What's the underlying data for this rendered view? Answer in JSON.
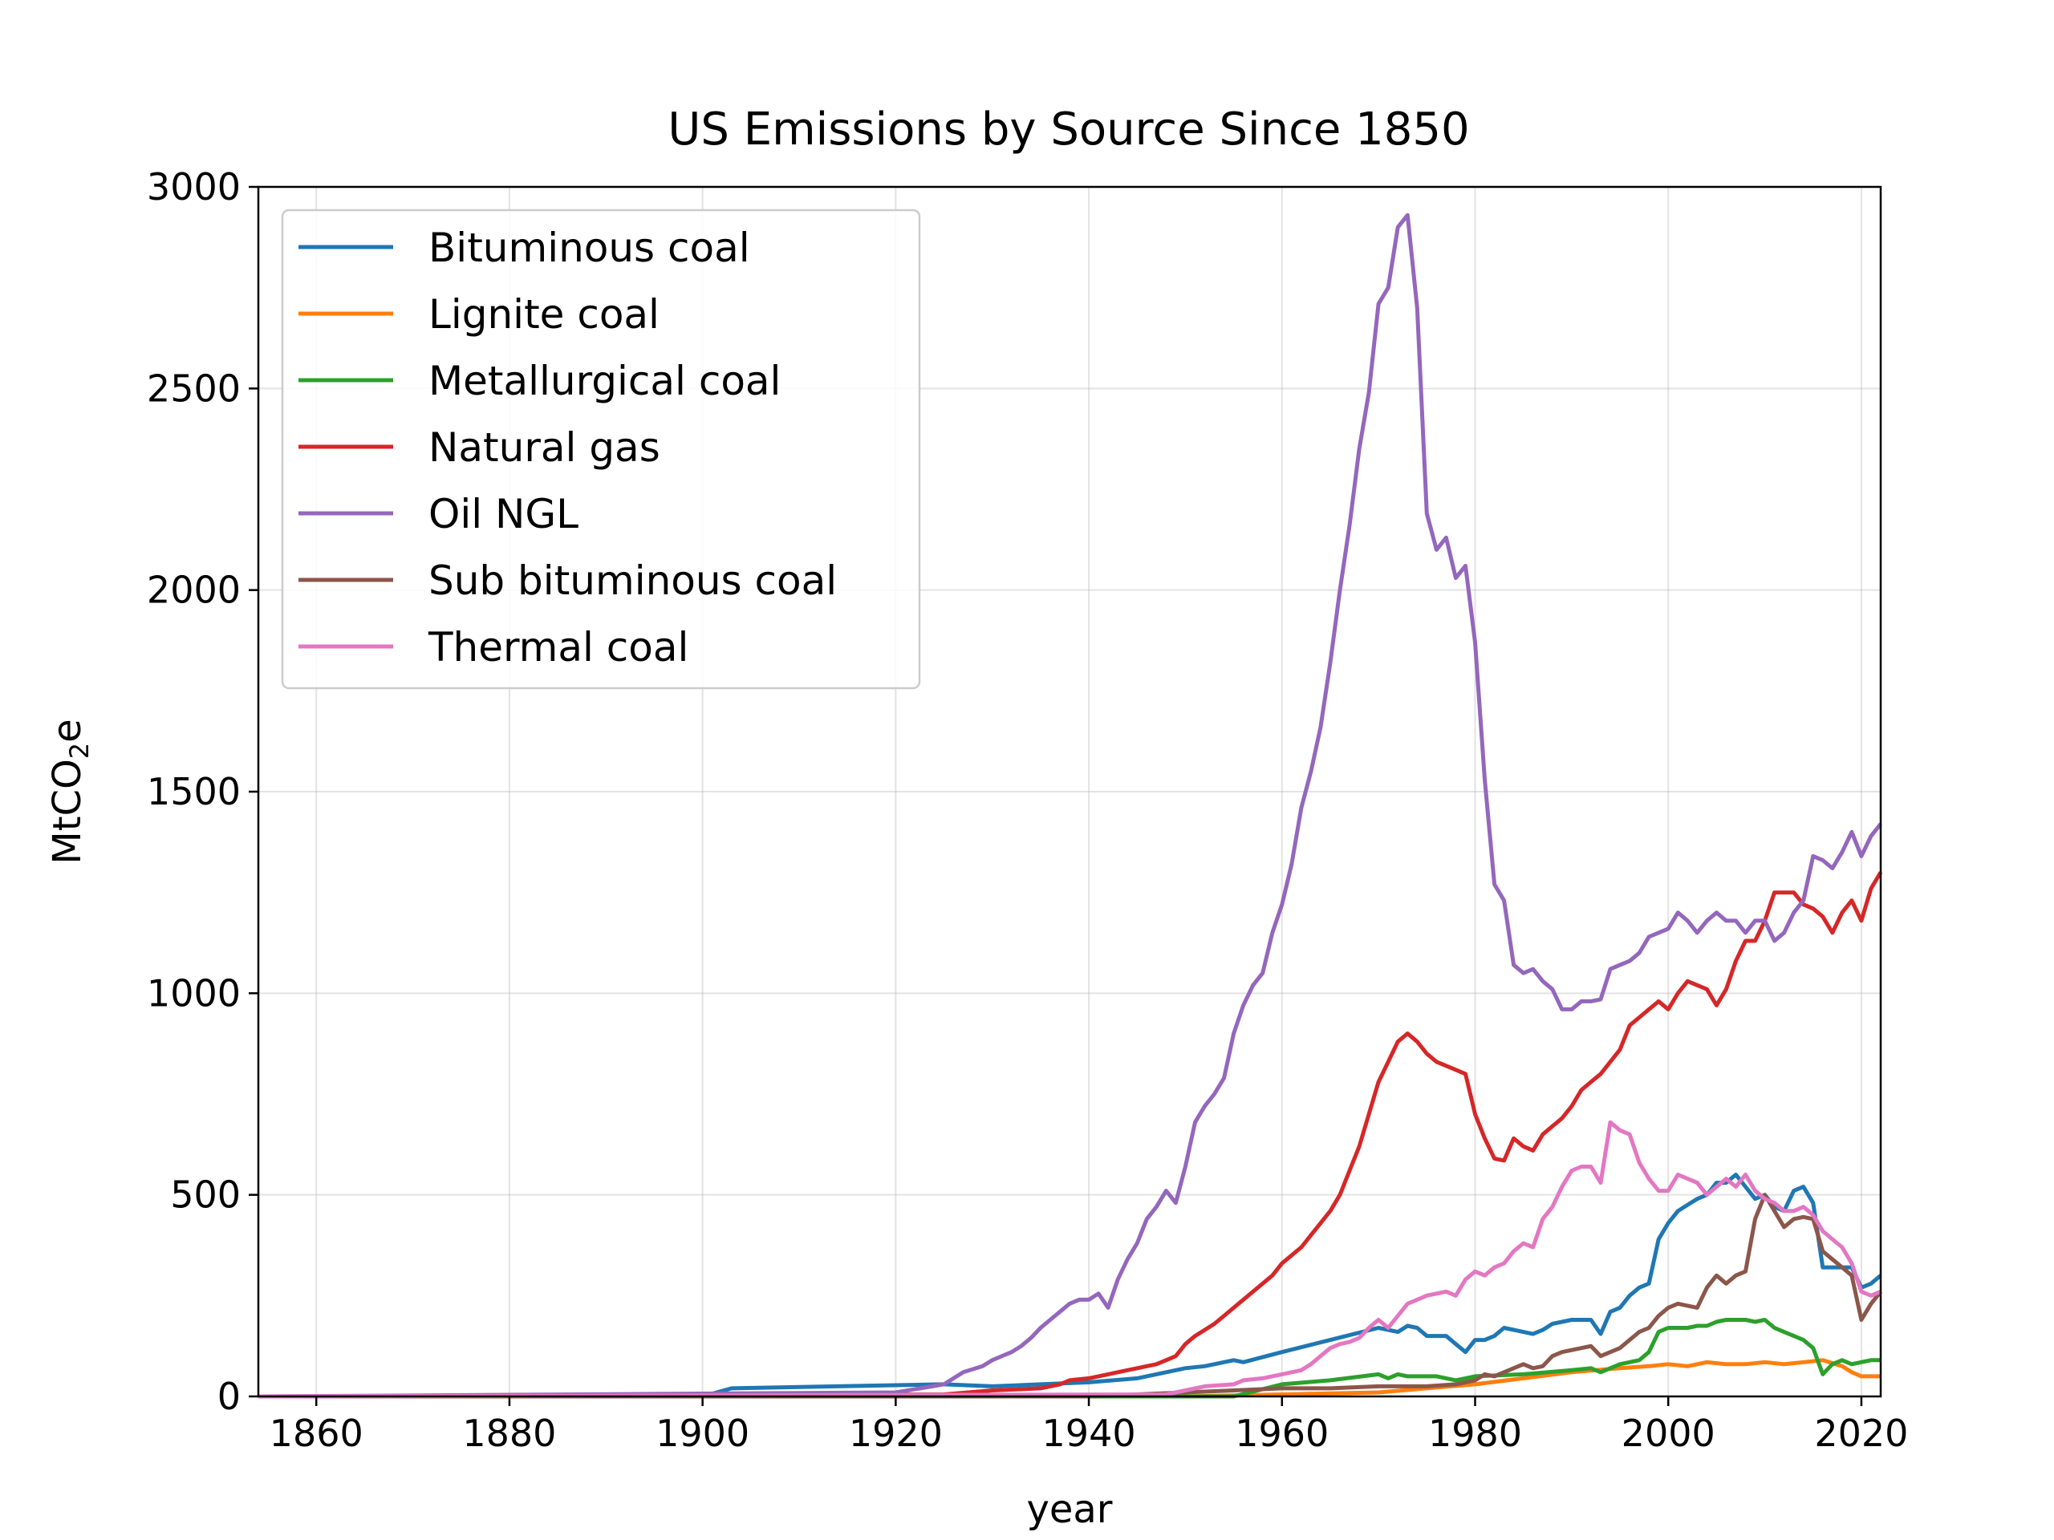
{
  "chart_data": {
    "type": "line",
    "title": "US Emissions by Source Since 1850",
    "xlabel": "year",
    "ylabel_main": "MtCO",
    "ylabel_sub": "2",
    "ylabel_end": "e",
    "xlim": [
      1854,
      2022
    ],
    "ylim": [
      0,
      3000
    ],
    "x_ticks": [
      1860,
      1880,
      1900,
      1920,
      1940,
      1960,
      1980,
      2000,
      2020
    ],
    "y_ticks": [
      0,
      500,
      1000,
      1500,
      2000,
      2500,
      3000
    ],
    "grid": true,
    "legend_position": "top-left",
    "series": [
      {
        "name": "Bituminous coal",
        "color": "#1f77b4",
        "x": [
          1854,
          1900,
          1903,
          1925,
          1930,
          1935,
          1940,
          1945,
          1950,
          1952,
          1955,
          1956,
          1960,
          1965,
          1970,
          1972,
          1973,
          1974,
          1975,
          1976,
          1977,
          1978,
          1979,
          1980,
          1981,
          1982,
          1983,
          1985,
          1986,
          1987,
          1988,
          1990,
          1992,
          1993,
          1994,
          1995,
          1996,
          1997,
          1998,
          1999,
          2000,
          2001,
          2002,
          2003,
          2004,
          2005,
          2006,
          2007,
          2008,
          2009,
          2010,
          2011,
          2012,
          2013,
          2014,
          2015,
          2016,
          2017,
          2018,
          2019,
          2020,
          2021,
          2022
        ],
        "y": [
          0,
          0,
          20,
          30,
          25,
          30,
          35,
          45,
          70,
          75,
          90,
          85,
          110,
          140,
          170,
          160,
          175,
          170,
          150,
          150,
          150,
          130,
          110,
          140,
          140,
          150,
          170,
          160,
          155,
          165,
          180,
          190,
          190,
          155,
          210,
          220,
          250,
          270,
          280,
          390,
          430,
          460,
          475,
          490,
          500,
          530,
          530,
          550,
          520,
          490,
          500,
          470,
          460,
          510,
          520,
          480,
          320,
          320,
          320,
          320,
          270,
          280,
          300
        ]
      },
      {
        "name": "Lignite coal",
        "color": "#ff7f0e",
        "x": [
          1854,
          1950,
          1960,
          1970,
          1975,
          1980,
          1985,
          1990,
          1995,
          1998,
          2000,
          2002,
          2004,
          2006,
          2008,
          2010,
          2012,
          2014,
          2016,
          2018,
          2019,
          2020,
          2022
        ],
        "y": [
          0,
          0,
          5,
          10,
          20,
          30,
          45,
          60,
          70,
          75,
          80,
          75,
          85,
          80,
          80,
          85,
          80,
          85,
          90,
          75,
          60,
          50,
          50
        ]
      },
      {
        "name": "Metallurgical coal",
        "color": "#2ca02c",
        "x": [
          1854,
          1955,
          1960,
          1965,
          1970,
          1971,
          1972,
          1973,
          1974,
          1975,
          1976,
          1977,
          1978,
          1979,
          1980,
          1985,
          1990,
          1992,
          1993,
          1994,
          1995,
          1996,
          1997,
          1998,
          1999,
          2000,
          2001,
          2002,
          2003,
          2004,
          2005,
          2006,
          2007,
          2008,
          2009,
          2010,
          2011,
          2012,
          2013,
          2014,
          2015,
          2016,
          2017,
          2018,
          2019,
          2020,
          2021,
          2022
        ],
        "y": [
          0,
          0,
          30,
          40,
          55,
          45,
          55,
          50,
          50,
          50,
          50,
          45,
          40,
          45,
          50,
          55,
          65,
          70,
          60,
          70,
          80,
          85,
          90,
          110,
          160,
          170,
          170,
          170,
          175,
          175,
          185,
          190,
          190,
          190,
          185,
          190,
          170,
          160,
          150,
          140,
          120,
          55,
          80,
          90,
          80,
          85,
          90,
          90
        ]
      },
      {
        "name": "Natural gas",
        "color": "#d62728",
        "x": [
          1854,
          1925,
          1930,
          1935,
          1937,
          1938,
          1940,
          1941,
          1942,
          1943,
          1944,
          1945,
          1946,
          1947,
          1948,
          1949,
          1950,
          1951,
          1952,
          1953,
          1954,
          1955,
          1956,
          1957,
          1958,
          1959,
          1960,
          1961,
          1962,
          1963,
          1964,
          1965,
          1966,
          1967,
          1968,
          1969,
          1970,
          1971,
          1972,
          1973,
          1974,
          1975,
          1976,
          1977,
          1978,
          1979,
          1980,
          1981,
          1982,
          1983,
          1984,
          1985,
          1986,
          1987,
          1988,
          1989,
          1990,
          1991,
          1992,
          1993,
          1994,
          1995,
          1996,
          1997,
          1998,
          1999,
          2000,
          2001,
          2002,
          2003,
          2004,
          2005,
          2006,
          2007,
          2008,
          2009,
          2010,
          2011,
          2012,
          2013,
          2014,
          2015,
          2016,
          2017,
          2018,
          2019,
          2020,
          2021,
          2022
        ],
        "y": [
          0,
          5,
          15,
          20,
          30,
          40,
          45,
          50,
          55,
          60,
          65,
          70,
          75,
          80,
          90,
          100,
          130,
          150,
          165,
          180,
          200,
          220,
          240,
          260,
          280,
          300,
          330,
          350,
          370,
          400,
          430,
          460,
          500,
          560,
          620,
          700,
          780,
          830,
          880,
          900,
          880,
          850,
          830,
          820,
          810,
          800,
          700,
          640,
          590,
          585,
          640,
          620,
          610,
          650,
          670,
          690,
          720,
          760,
          780,
          800,
          830,
          860,
          920,
          940,
          960,
          980,
          960,
          1000,
          1030,
          1020,
          1010,
          970,
          1010,
          1080,
          1130,
          1130,
          1180,
          1250,
          1250,
          1250,
          1220,
          1210,
          1190,
          1150,
          1200,
          1230,
          1180,
          1260,
          1300
        ]
      },
      {
        "name": "Oil NGL",
        "color": "#9467bd",
        "x": [
          1854,
          1920,
          1925,
          1927,
          1929,
          1930,
          1931,
          1932,
          1933,
          1934,
          1935,
          1936,
          1937,
          1938,
          1939,
          1940,
          1941,
          1942,
          1943,
          1944,
          1945,
          1946,
          1947,
          1948,
          1949,
          1950,
          1951,
          1952,
          1953,
          1954,
          1955,
          1956,
          1957,
          1958,
          1959,
          1960,
          1961,
          1962,
          1963,
          1964,
          1965,
          1966,
          1967,
          1968,
          1969,
          1970,
          1971,
          1972,
          1973,
          1974,
          1975,
          1976,
          1977,
          1978,
          1979,
          1980,
          1981,
          1982,
          1983,
          1984,
          1985,
          1986,
          1987,
          1988,
          1989,
          1990,
          1991,
          1992,
          1993,
          1994,
          1995,
          1996,
          1997,
          1998,
          1999,
          2000,
          2001,
          2002,
          2003,
          2004,
          2005,
          2006,
          2007,
          2008,
          2009,
          2010,
          2011,
          2012,
          2013,
          2014,
          2015,
          2016,
          2017,
          2018,
          2019,
          2020,
          2021,
          2022
        ],
        "y": [
          0,
          10,
          30,
          60,
          75,
          90,
          100,
          110,
          125,
          145,
          170,
          190,
          210,
          230,
          240,
          240,
          255,
          220,
          290,
          340,
          380,
          440,
          470,
          510,
          480,
          570,
          680,
          720,
          750,
          790,
          900,
          970,
          1020,
          1050,
          1150,
          1220,
          1320,
          1460,
          1550,
          1660,
          1820,
          2000,
          2160,
          2350,
          2490,
          2710,
          2750,
          2900,
          2930,
          2700,
          2190,
          2100,
          2130,
          2030,
          2060,
          1870,
          1530,
          1270,
          1230,
          1070,
          1050,
          1060,
          1030,
          1010,
          960,
          960,
          980,
          980,
          985,
          1060,
          1070,
          1080,
          1100,
          1140,
          1150,
          1160,
          1200,
          1180,
          1150,
          1180,
          1200,
          1180,
          1180,
          1150,
          1180,
          1180,
          1130,
          1150,
          1200,
          1230,
          1340,
          1330,
          1310,
          1350,
          1400,
          1340,
          1390,
          1420
        ]
      },
      {
        "name": "Sub bituminous coal",
        "color": "#8c564b",
        "x": [
          1854,
          1940,
          1945,
          1950,
          1955,
          1960,
          1965,
          1970,
          1975,
          1978,
          1980,
          1981,
          1982,
          1983,
          1984,
          1985,
          1986,
          1987,
          1988,
          1989,
          1990,
          1991,
          1992,
          1993,
          1994,
          1995,
          1996,
          1997,
          1998,
          1999,
          2000,
          2001,
          2002,
          2003,
          2004,
          2005,
          2006,
          2007,
          2008,
          2009,
          2010,
          2011,
          2012,
          2013,
          2014,
          2015,
          2016,
          2017,
          2018,
          2019,
          2020,
          2021,
          2022
        ],
        "y": [
          0,
          0,
          5,
          10,
          15,
          20,
          20,
          25,
          25,
          30,
          40,
          55,
          50,
          60,
          70,
          80,
          70,
          75,
          100,
          110,
          115,
          120,
          125,
          100,
          110,
          120,
          140,
          160,
          170,
          200,
          220,
          230,
          225,
          220,
          270,
          300,
          280,
          300,
          310,
          440,
          500,
          460,
          420,
          440,
          445,
          440,
          360,
          340,
          320,
          300,
          190,
          230,
          260
        ]
      },
      {
        "name": "Thermal coal",
        "color": "#e377c2",
        "x": [
          1854,
          1948,
          1950,
          1952,
          1955,
          1956,
          1958,
          1960,
          1962,
          1963,
          1964,
          1965,
          1966,
          1967,
          1968,
          1969,
          1970,
          1971,
          1972,
          1973,
          1974,
          1975,
          1976,
          1977,
          1978,
          1979,
          1980,
          1981,
          1982,
          1983,
          1984,
          1985,
          1986,
          1987,
          1988,
          1989,
          1990,
          1991,
          1992,
          1993,
          1994,
          1995,
          1996,
          1997,
          1998,
          1999,
          2000,
          2001,
          2002,
          2003,
          2004,
          2005,
          2006,
          2007,
          2008,
          2009,
          2010,
          2011,
          2012,
          2013,
          2014,
          2015,
          2016,
          2017,
          2018,
          2019,
          2020,
          2021,
          2022
        ],
        "y": [
          0,
          5,
          15,
          25,
          30,
          40,
          45,
          55,
          65,
          80,
          100,
          120,
          130,
          135,
          145,
          170,
          190,
          170,
          200,
          230,
          240,
          250,
          255,
          260,
          250,
          290,
          310,
          300,
          320,
          330,
          360,
          380,
          370,
          440,
          470,
          520,
          560,
          570,
          570,
          530,
          680,
          660,
          650,
          580,
          540,
          510,
          510,
          550,
          540,
          530,
          500,
          520,
          540,
          520,
          550,
          510,
          490,
          480,
          460,
          460,
          470,
          450,
          410,
          390,
          370,
          330,
          260,
          250,
          260
        ]
      }
    ]
  }
}
